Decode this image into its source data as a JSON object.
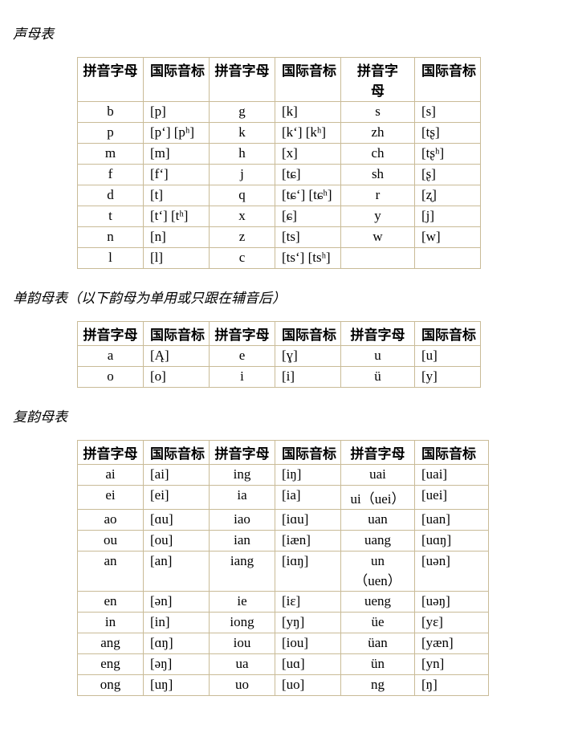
{
  "sections": [
    {
      "title": "声母表",
      "headers": [
        "拼音字母",
        "国际音标",
        "拼音字母",
        "国际音标",
        "拼音字\n母",
        "国际音标"
      ],
      "headerTall": true,
      "colClasses": [
        "c-pin",
        "c-ipa",
        "c-pin",
        "c-ipa",
        "c-pin-w",
        "c-ipa"
      ],
      "rows": [
        [
          "b",
          "[p]",
          "g",
          "[k]",
          "s",
          "[s]"
        ],
        [
          "p",
          "[pʻ] [pʰ]",
          "k",
          "[kʻ] [kʰ]",
          "zh",
          "[tʂ]"
        ],
        [
          "m",
          "[m]",
          "h",
          "[x]",
          "ch",
          "[tʂʰ]"
        ],
        [
          "f",
          "[fʻ]",
          "j",
          "[tɕ]",
          "sh",
          "[ʂ]"
        ],
        [
          "d",
          "[t]",
          "q",
          "[tɕʻ] [tɕʰ]",
          "r",
          "[ʐ]"
        ],
        [
          "t",
          "[tʻ] [tʰ]",
          "x",
          "[ɕ]",
          "y",
          "[j]"
        ],
        [
          "n",
          "[n]",
          "z",
          "[ts]",
          "w",
          "[w]"
        ],
        [
          "l",
          "[l]",
          "c",
          "[tsʻ] [tsʰ]",
          "",
          ""
        ]
      ]
    },
    {
      "title": "单韵母表（以下韵母为单用或只跟在辅音后）",
      "headers": [
        "拼音字母",
        "国际音标",
        "拼音字母",
        "国际音标",
        "拼音字母",
        "国际音标"
      ],
      "headerTall": false,
      "colClasses": [
        "c-pin",
        "c-ipa",
        "c-pin",
        "c-ipa",
        "c-pin-w",
        "c-ipa"
      ],
      "rows": [
        [
          "a",
          "[Ą]",
          "e",
          "[ɣ]",
          "u",
          "[u]"
        ],
        [
          "o",
          "[o]",
          "i",
          "[i]",
          "ü",
          "[y]"
        ]
      ]
    },
    {
      "title": "复韵母表",
      "headers": [
        "拼音字母",
        "国际音标",
        "拼音字母",
        "国际音标",
        "拼音字母",
        "国际音标"
      ],
      "headerTall": false,
      "colClasses": [
        "c-pin",
        "c-ipa",
        "c-pin",
        "c-ipa",
        "c-pin-w",
        "c-ipa-w"
      ],
      "rows": [
        [
          "ai",
          "[ai]",
          "ing",
          "[iŋ]",
          "uai",
          "[uai]"
        ],
        [
          "ei",
          "[ei]",
          "ia",
          "[ia]",
          "ui（uei）",
          "[uei]"
        ],
        [
          "ao",
          "[ɑu]",
          "iao",
          "[iɑu]",
          "uan",
          "[uan]"
        ],
        [
          "ou",
          "[ou]",
          "ian",
          "[iæn]",
          "uang",
          "[uɑŋ]"
        ],
        [
          "an",
          "[an]",
          "iang",
          "[iɑŋ]",
          "un\n（uen）",
          "[uən]"
        ],
        [
          "en",
          "[ən]",
          "ie",
          "[iɛ]",
          "ueng",
          "[uəŋ]"
        ],
        [
          "in",
          "[in]",
          "iong",
          "[yŋ]",
          "üe",
          "[yɛ]"
        ],
        [
          "ang",
          "[ɑŋ]",
          "iou",
          "[iou]",
          "üan",
          "[yæn]"
        ],
        [
          "eng",
          "[əŋ]",
          "ua",
          "[uɑ]",
          "ün",
          "[yn]"
        ],
        [
          "ong",
          "[uŋ]",
          "uo",
          "[uo]",
          "ng",
          "[ŋ]"
        ]
      ]
    }
  ]
}
